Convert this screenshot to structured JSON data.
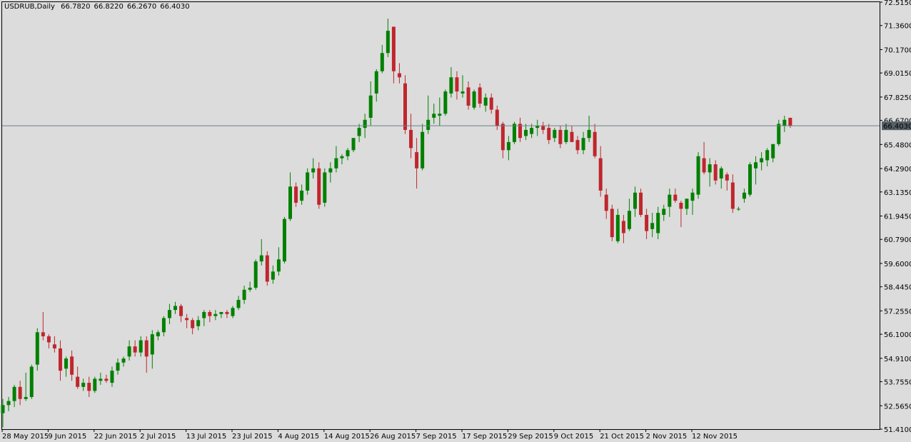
{
  "header": {
    "symbol": "USDRUB,Daily",
    "open": "66.7820",
    "high": "66.8220",
    "low": "66.2670",
    "close": "66.4030"
  },
  "colors": {
    "background": "#dcdcdc",
    "frame": "#000000",
    "bull": "#008000",
    "bear": "#c0262d",
    "price_line": "#6b7f8c",
    "price_label_bg": "#555f66",
    "price_label_text": "#ffffff"
  },
  "chart_data": {
    "type": "candlestick",
    "title": "USDRUB,Daily",
    "ylim": [
      51.41,
      72.515
    ],
    "y_ticks": [
      "72.5150",
      "71.3600",
      "70.1700",
      "69.0150",
      "67.8250",
      "66.6700",
      "65.4800",
      "64.2900",
      "63.1350",
      "61.9450",
      "60.7900",
      "59.6000",
      "58.4450",
      "57.2550",
      "56.1000",
      "54.9100",
      "53.7550",
      "52.5650",
      "51.4100"
    ],
    "x_ticks": [
      "28 May 2015",
      "9 Jun 2015",
      "22 Jun 2015",
      "2 Jul 2015",
      "13 Jul 2015",
      "23 Jul 2015",
      "4 Aug 2015",
      "14 Aug 2015",
      "26 Aug 2015",
      "7 Sep 2015",
      "17 Sep 2015",
      "29 Sep 2015",
      "9 Oct 2015",
      "21 Oct 2015",
      "2 Nov 2015",
      "12 Nov 2015"
    ],
    "x_tick_bar_index": [
      0,
      8,
      16,
      24,
      32,
      40,
      48,
      56,
      64,
      72,
      80,
      88,
      96,
      104,
      112,
      120
    ],
    "current_price": "66.4030",
    "grid": false,
    "ohlc": [
      [
        52.2,
        52.9,
        51.5,
        52.6
      ],
      [
        52.6,
        53.0,
        52.3,
        52.8
      ],
      [
        52.8,
        53.6,
        52.5,
        53.5
      ],
      [
        53.5,
        53.8,
        52.6,
        52.9
      ],
      [
        52.9,
        54.2,
        52.8,
        53.0
      ],
      [
        53.0,
        54.6,
        52.9,
        54.5
      ],
      [
        54.6,
        56.4,
        54.3,
        56.2
      ],
      [
        56.2,
        57.2,
        55.8,
        56.0
      ],
      [
        56.0,
        56.1,
        55.4,
        55.7
      ],
      [
        55.6,
        56.0,
        55.2,
        55.4
      ],
      [
        55.4,
        55.8,
        53.8,
        54.3
      ],
      [
        54.4,
        55.0,
        54.0,
        54.9
      ],
      [
        55.0,
        55.3,
        53.8,
        54.1
      ],
      [
        54.0,
        54.5,
        53.4,
        53.5
      ],
      [
        53.5,
        53.9,
        53.3,
        53.7
      ],
      [
        53.7,
        54.0,
        53.0,
        53.3
      ],
      [
        53.3,
        54.0,
        53.2,
        53.9
      ],
      [
        53.8,
        54.2,
        53.6,
        53.9
      ],
      [
        53.9,
        54.1,
        53.7,
        53.8
      ],
      [
        53.7,
        54.5,
        53.5,
        54.3
      ],
      [
        54.3,
        54.9,
        54.1,
        54.7
      ],
      [
        54.7,
        55.0,
        54.5,
        54.9
      ],
      [
        55.0,
        55.8,
        54.8,
        55.5
      ],
      [
        55.5,
        55.8,
        55.0,
        55.2
      ],
      [
        55.2,
        56.0,
        55.0,
        55.8
      ],
      [
        55.8,
        56.0,
        54.2,
        55.0
      ],
      [
        55.1,
        56.3,
        54.4,
        56.1
      ],
      [
        56.0,
        56.3,
        55.8,
        56.2
      ],
      [
        56.2,
        57.0,
        56.0,
        56.9
      ],
      [
        56.9,
        57.6,
        56.6,
        57.3
      ],
      [
        57.3,
        57.7,
        57.1,
        57.5
      ],
      [
        57.5,
        57.6,
        56.7,
        57.0
      ],
      [
        56.9,
        57.1,
        56.4,
        56.8
      ],
      [
        56.8,
        56.9,
        56.1,
        56.4
      ],
      [
        56.5,
        57.0,
        56.3,
        56.8
      ],
      [
        56.9,
        57.3,
        56.5,
        57.2
      ],
      [
        57.2,
        57.3,
        56.7,
        57.0
      ],
      [
        57.0,
        57.3,
        56.8,
        57.1
      ],
      [
        57.1,
        57.2,
        56.9,
        57.2
      ],
      [
        57.2,
        57.3,
        56.9,
        57.1
      ],
      [
        57.0,
        57.5,
        56.9,
        57.4
      ],
      [
        57.4,
        58.0,
        57.3,
        57.8
      ],
      [
        57.8,
        58.5,
        57.6,
        58.3
      ],
      [
        58.3,
        58.7,
        58.2,
        58.4
      ],
      [
        58.4,
        59.8,
        58.3,
        59.7
      ],
      [
        59.7,
        60.8,
        59.5,
        60.0
      ],
      [
        60.0,
        60.2,
        58.5,
        58.7
      ],
      [
        58.8,
        59.5,
        58.6,
        59.2
      ],
      [
        59.2,
        60.4,
        59.0,
        59.8
      ],
      [
        59.7,
        61.9,
        59.6,
        61.8
      ],
      [
        61.8,
        64.1,
        61.7,
        63.4
      ],
      [
        63.4,
        63.6,
        62.4,
        62.6
      ],
      [
        62.7,
        63.5,
        62.5,
        63.2
      ],
      [
        63.2,
        64.3,
        63.0,
        64.1
      ],
      [
        64.1,
        64.8,
        63.8,
        64.3
      ],
      [
        64.3,
        64.6,
        62.3,
        62.5
      ],
      [
        62.6,
        64.3,
        62.4,
        64.1
      ],
      [
        64.1,
        64.6,
        63.6,
        64.3
      ],
      [
        64.3,
        65.4,
        64.1,
        64.8
      ],
      [
        64.8,
        65.0,
        64.5,
        64.9
      ],
      [
        64.9,
        65.3,
        64.7,
        65.2
      ],
      [
        65.2,
        65.8,
        65.1,
        65.8
      ],
      [
        65.9,
        66.5,
        65.6,
        66.3
      ],
      [
        66.3,
        67.0,
        65.8,
        66.7
      ],
      [
        66.8,
        68.6,
        66.4,
        67.9
      ],
      [
        68.0,
        69.2,
        67.6,
        69.1
      ],
      [
        69.1,
        70.4,
        69.0,
        70.0
      ],
      [
        70.0,
        71.7,
        69.8,
        71.1
      ],
      [
        71.3,
        71.3,
        68.5,
        69.1
      ],
      [
        69.0,
        69.5,
        68.5,
        68.8
      ],
      [
        68.5,
        68.9,
        66.0,
        66.2
      ],
      [
        66.2,
        67.0,
        64.8,
        65.3
      ],
      [
        65.1,
        65.8,
        63.3,
        64.3
      ],
      [
        64.3,
        66.5,
        64.2,
        66.1
      ],
      [
        66.2,
        67.9,
        66.0,
        66.7
      ],
      [
        66.8,
        67.5,
        66.5,
        67.0
      ],
      [
        66.9,
        67.8,
        66.4,
        67.0
      ],
      [
        67.0,
        68.2,
        66.9,
        68.1
      ],
      [
        68.0,
        69.3,
        67.8,
        68.8
      ],
      [
        68.8,
        69.1,
        67.7,
        68.1
      ],
      [
        68.0,
        68.9,
        67.8,
        68.1
      ],
      [
        68.3,
        68.6,
        67.2,
        67.4
      ],
      [
        67.3,
        68.2,
        67.2,
        68.1
      ],
      [
        68.3,
        68.5,
        67.3,
        67.5
      ],
      [
        67.4,
        68.0,
        67.1,
        67.8
      ],
      [
        67.8,
        68.0,
        67.0,
        67.2
      ],
      [
        67.2,
        67.4,
        66.2,
        66.4
      ],
      [
        66.5,
        66.6,
        64.8,
        65.2
      ],
      [
        65.2,
        65.9,
        64.7,
        65.6
      ],
      [
        65.6,
        66.6,
        65.5,
        66.5
      ],
      [
        66.5,
        66.8,
        65.6,
        65.8
      ],
      [
        65.9,
        66.5,
        65.7,
        66.2
      ],
      [
        66.0,
        66.5,
        65.8,
        66.3
      ],
      [
        66.3,
        66.7,
        65.9,
        66.4
      ],
      [
        66.4,
        66.6,
        66.0,
        66.2
      ],
      [
        66.3,
        66.5,
        65.5,
        65.7
      ],
      [
        65.8,
        66.3,
        65.6,
        66.2
      ],
      [
        66.2,
        66.4,
        65.3,
        65.5
      ],
      [
        65.6,
        66.5,
        65.5,
        66.2
      ],
      [
        66.1,
        66.4,
        65.6,
        65.6
      ],
      [
        65.7,
        65.9,
        65.0,
        65.2
      ],
      [
        65.2,
        66.1,
        65.0,
        65.8
      ],
      [
        65.8,
        66.9,
        65.6,
        66.2
      ],
      [
        66.1,
        66.5,
        64.8,
        64.9
      ],
      [
        64.8,
        65.4,
        62.9,
        63.2
      ],
      [
        63.0,
        63.3,
        61.8,
        62.2
      ],
      [
        62.3,
        62.5,
        60.7,
        60.9
      ],
      [
        60.7,
        62.3,
        60.6,
        62.0
      ],
      [
        61.7,
        62.0,
        60.6,
        61.1
      ],
      [
        61.3,
        62.8,
        61.2,
        62.2
      ],
      [
        62.3,
        63.4,
        61.9,
        63.1
      ],
      [
        63.1,
        63.3,
        61.9,
        62.0
      ],
      [
        62.0,
        62.3,
        60.8,
        61.2
      ],
      [
        61.3,
        62.1,
        60.9,
        61.6
      ],
      [
        61.1,
        62.4,
        60.8,
        62.1
      ],
      [
        62.0,
        62.5,
        61.7,
        62.3
      ],
      [
        62.4,
        63.3,
        61.9,
        63.0
      ],
      [
        63.0,
        63.3,
        62.6,
        62.7
      ],
      [
        62.6,
        62.7,
        61.4,
        62.3
      ],
      [
        62.3,
        62.8,
        62.0,
        62.8
      ],
      [
        62.7,
        63.3,
        62.0,
        63.1
      ],
      [
        63.0,
        65.1,
        62.8,
        64.9
      ],
      [
        64.8,
        65.6,
        64.0,
        64.1
      ],
      [
        64.1,
        64.8,
        63.4,
        64.5
      ],
      [
        64.5,
        64.7,
        63.5,
        63.7
      ],
      [
        63.8,
        64.4,
        63.3,
        64.3
      ],
      [
        64.0,
        64.1,
        63.2,
        63.7
      ],
      [
        63.6,
        64.0,
        62.1,
        62.3
      ],
      [
        62.3,
        62.4,
        62.2,
        62.3
      ],
      [
        62.8,
        63.3,
        62.6,
        63.1
      ],
      [
        63.0,
        64.6,
        62.9,
        64.5
      ],
      [
        64.3,
        64.9,
        63.5,
        64.6
      ],
      [
        64.6,
        65.1,
        64.2,
        64.8
      ],
      [
        64.7,
        65.3,
        64.4,
        65.2
      ],
      [
        64.8,
        65.4,
        64.6,
        65.5
      ],
      [
        65.5,
        66.7,
        65.4,
        66.5
      ],
      [
        66.4,
        66.9,
        66.1,
        66.7
      ],
      [
        66.8,
        66.8,
        66.3,
        66.4
      ]
    ]
  }
}
